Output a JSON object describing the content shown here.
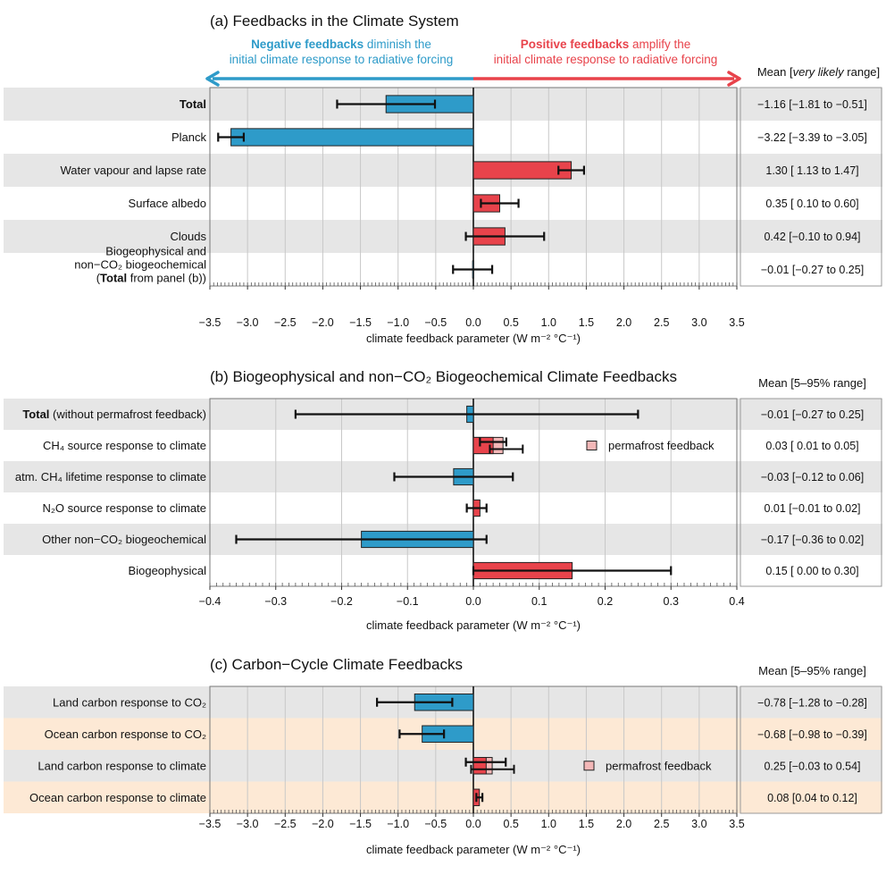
{
  "colors": {
    "negative": "#2E9BC9",
    "positive": "#E8434B",
    "permafrost": "#F3B7B7",
    "band_grey": "#E6E6E6",
    "band_orange": "#FDE9D5",
    "grid": "#C8C8C8",
    "title_neg": "#2E9BC9",
    "title_pos": "#E8434B"
  },
  "chart_data": [
    {
      "id": "a",
      "type": "bar",
      "orientation": "horizontal",
      "title": "(a) Feedbacks in the Climate System",
      "xlabel": "climate feedback parameter (W m⁻² °C⁻¹)",
      "xlim": [
        -3.5,
        3.5
      ],
      "xticks": [
        -3.5,
        -3.0,
        -2.5,
        -2.0,
        -1.5,
        -1.0,
        -0.5,
        0.0,
        0.5,
        1.0,
        1.5,
        2.0,
        2.5,
        3.0,
        3.5
      ],
      "xtick_labels": [
        "−3.5",
        "−3.0",
        "−2.5",
        "−2.0",
        "−1.5",
        "−1.0",
        "−0.5",
        "0.0",
        "0.5",
        "1.0",
        "1.5",
        "2.0",
        "2.5",
        "3.0",
        "3.5"
      ],
      "negative_label_bold": "Negative feedbacks",
      "negative_label_rest": " diminish the",
      "negative_label_line2": "initial climate response to radiative forcing",
      "positive_label_bold": "Positive feedbacks",
      "positive_label_rest": " amplify the",
      "positive_label_line2": "initial climate response to radiative forcing",
      "range_header_prefix": "Mean [",
      "range_header_italic": "very likely",
      "range_header_suffix": " range]",
      "rows": [
        {
          "label": "Total",
          "bold": true,
          "value": -1.16,
          "low": -1.81,
          "high": -0.51,
          "range_text": "−1.16 [−1.81 to −0.51]",
          "band": "grey"
        },
        {
          "label": "Planck",
          "value": -3.22,
          "low": -3.39,
          "high": -3.05,
          "range_text": "−3.22 [−3.39 to −3.05]",
          "band": "none"
        },
        {
          "label": "Water vapour and lapse rate",
          "value": 1.3,
          "low": 1.13,
          "high": 1.47,
          "range_text": "1.30 [ 1.13 to  1.47]",
          "band": "grey"
        },
        {
          "label": "Surface albedo",
          "value": 0.35,
          "low": 0.1,
          "high": 0.6,
          "range_text": "0.35 [ 0.10 to  0.60]",
          "band": "none"
        },
        {
          "label": "Clouds",
          "value": 0.42,
          "low": -0.1,
          "high": 0.94,
          "range_text": "0.42 [−0.10 to  0.94]",
          "band": "grey"
        },
        {
          "label_lines": [
            "Biogeophysical and",
            "non−CO₂ biogeochemical"
          ],
          "label_line3_bold": "Total",
          "label_line3_rest": " from panel (b))",
          "label_line3_open": "(",
          "value": -0.01,
          "low": -0.27,
          "high": 0.25,
          "range_text": "−0.01 [−0.27 to  0.25]",
          "band": "none"
        }
      ]
    },
    {
      "id": "b",
      "type": "bar",
      "orientation": "horizontal",
      "title": "(b) Biogeophysical and non−CO₂ Biogeochemical Climate Feedbacks",
      "xlabel": "climate feedback parameter (W m⁻² °C⁻¹)",
      "xlim": [
        -0.4,
        0.4
      ],
      "xticks": [
        -0.4,
        -0.3,
        -0.2,
        -0.1,
        0.0,
        0.1,
        0.2,
        0.3,
        0.4
      ],
      "xtick_labels": [
        "−0.4",
        "−0.3",
        "−0.2",
        "−0.1",
        "0.0",
        "0.1",
        "0.2",
        "0.3",
        "0.4"
      ],
      "range_header": "Mean [5–95% range]",
      "legend": "permafrost feedback",
      "rows": [
        {
          "label_bold": "Total",
          "label": " (without permafrost feedback)",
          "value": -0.01,
          "low": -0.27,
          "high": 0.25,
          "range_text": "−0.01 [−0.27 to 0.25]",
          "band": "grey"
        },
        {
          "label": "CH₄ source response to climate",
          "value": 0.03,
          "low": 0.01,
          "high": 0.05,
          "permafrost": {
            "value": 0.045,
            "low": 0.025,
            "high": 0.075
          },
          "range_text": "0.03 [ 0.01 to 0.05]",
          "band": "none"
        },
        {
          "label": "atm. CH₄ lifetime response to climate",
          "value": -0.03,
          "low": -0.12,
          "high": 0.06,
          "range_text": "−0.03 [−0.12 to 0.06]",
          "band": "grey"
        },
        {
          "label": "N₂O source response to climate",
          "value": 0.01,
          "low": -0.01,
          "high": 0.02,
          "range_text": "0.01 [−0.01 to 0.02]",
          "band": "none"
        },
        {
          "label": "Other non−CO₂ biogeochemical",
          "value": -0.17,
          "low": -0.36,
          "high": 0.02,
          "range_text": "−0.17 [−0.36 to 0.02]",
          "band": "grey"
        },
        {
          "label": "Biogeophysical",
          "value": 0.15,
          "low": 0.0,
          "high": 0.3,
          "range_text": "0.15 [ 0.00 to 0.30]",
          "band": "none"
        }
      ]
    },
    {
      "id": "c",
      "type": "bar",
      "orientation": "horizontal",
      "title": "(c) Carbon−Cycle Climate Feedbacks",
      "xlabel": "climate feedback parameter (W m⁻² °C⁻¹)",
      "xlim": [
        -3.5,
        3.5
      ],
      "xticks": [
        -3.5,
        -3.0,
        -2.5,
        -2.0,
        -1.5,
        -1.0,
        -0.5,
        0.0,
        0.5,
        1.0,
        1.5,
        2.0,
        2.5,
        3.0,
        3.5
      ],
      "xtick_labels": [
        "−3.5",
        "−3.0",
        "−2.5",
        "−2.0",
        "−1.5",
        "−1.0",
        "−0.5",
        "0.0",
        "0.5",
        "1.0",
        "1.5",
        "2.0",
        "2.5",
        "3.0",
        "3.5"
      ],
      "range_header": "Mean [5–95% range]",
      "legend": "permafrost feedback",
      "rows": [
        {
          "label": "Land carbon response to CO₂",
          "value": -0.78,
          "low": -1.28,
          "high": -0.28,
          "range_text": "−0.78 [−1.28 to −0.28]",
          "band": "grey"
        },
        {
          "label": "Ocean carbon response to CO₂",
          "value": -0.68,
          "low": -0.98,
          "high": -0.39,
          "range_text": "−0.68 [−0.98 to −0.39]",
          "band": "orange"
        },
        {
          "label": "Land carbon response to climate",
          "value": 0.17,
          "low": -0.1,
          "high": 0.43,
          "permafrost": {
            "value": 0.25,
            "low": -0.03,
            "high": 0.54
          },
          "range_text": "0.25 [−0.03 to 0.54]",
          "band": "grey"
        },
        {
          "label": "Ocean carbon response to climate",
          "value": 0.08,
          "low": 0.04,
          "high": 0.12,
          "range_text": "0.08 [0.04 to 0.12]",
          "band": "orange"
        }
      ]
    }
  ]
}
